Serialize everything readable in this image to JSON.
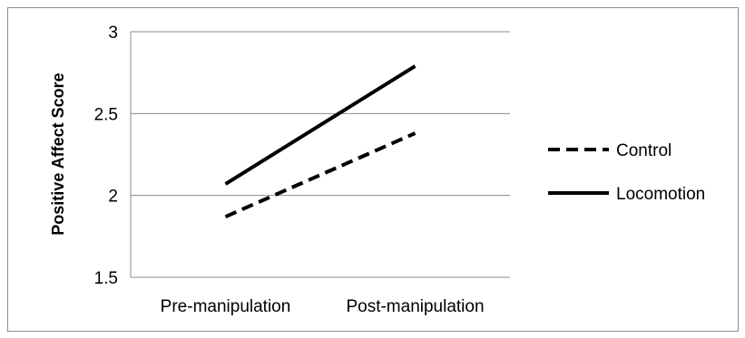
{
  "chart_data": {
    "type": "line",
    "title": "",
    "xlabel": "",
    "ylabel": "Positive Affect Score",
    "categories": [
      "Pre-manipulation",
      "Post-manipulation"
    ],
    "ylim": [
      1.5,
      3
    ],
    "yticks": [
      "1.5",
      "2",
      "2.5",
      "3"
    ],
    "grid": true,
    "legend": "right",
    "series": [
      {
        "name": "Control",
        "values": [
          1.87,
          2.38
        ],
        "style": "dashed",
        "color": "#000000"
      },
      {
        "name": "Locomotion",
        "values": [
          2.07,
          2.79
        ],
        "style": "solid",
        "color": "#000000"
      }
    ]
  }
}
